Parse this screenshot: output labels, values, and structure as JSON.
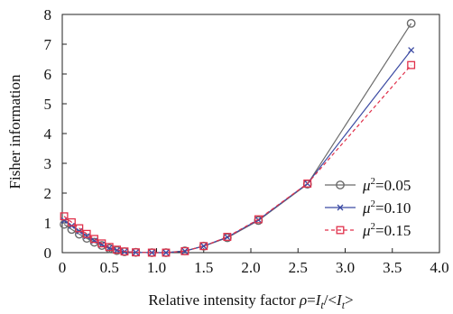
{
  "chart_data": {
    "type": "line",
    "xlabel": "Relative intensity factor ρ=I_t/<I_t>",
    "xlabel_parts": {
      "prefix": "Relative intensity factor ",
      "math_rho": "ρ",
      "math_eq": "=",
      "math_I1": "I",
      "sub1": "t",
      "math_mid": "/<",
      "math_I2": "I",
      "sub2": "t",
      "math_end": ">"
    },
    "ylabel": "Fisher information",
    "xlim": [
      0,
      4.0
    ],
    "ylim": [
      0,
      8
    ],
    "xticks": [
      "0",
      "0.5",
      "1.0",
      "1.5",
      "2.0",
      "2.5",
      "3.0",
      "3.5",
      "4.0"
    ],
    "xtick_values": [
      0,
      0.5,
      1.0,
      1.5,
      2.0,
      2.5,
      3.0,
      3.5,
      4.0
    ],
    "yticks": [
      "0",
      "1",
      "2",
      "3",
      "4",
      "5",
      "6",
      "7",
      "8"
    ],
    "ytick_values": [
      0,
      1,
      2,
      3,
      4,
      5,
      6,
      7,
      8
    ],
    "grid": false,
    "legend_position": "bottom-right",
    "series": [
      {
        "name": "μ²=0.05",
        "label_prefix": "μ",
        "label_sup": "2",
        "label_value": "=0.05",
        "color": "#6b6b6b",
        "marker": "circle",
        "dash": "solid",
        "x": [
          0.02,
          0.1,
          0.18,
          0.26,
          0.34,
          0.42,
          0.5,
          0.58,
          0.66,
          0.78,
          0.95,
          1.1,
          1.3,
          1.5,
          1.75,
          2.08,
          2.6,
          3.7
        ],
        "y": [
          0.95,
          0.78,
          0.62,
          0.48,
          0.35,
          0.24,
          0.14,
          0.07,
          0.03,
          0.01,
          0.0,
          0.0,
          0.06,
          0.22,
          0.5,
          1.08,
          2.3,
          7.7
        ]
      },
      {
        "name": "μ²=0.10",
        "label_prefix": "μ",
        "label_sup": "2",
        "label_value": "=0.10",
        "color": "#3b4aa3",
        "marker": "x",
        "dash": "solid",
        "x": [
          0.02,
          0.1,
          0.18,
          0.26,
          0.34,
          0.42,
          0.5,
          0.58,
          0.66,
          0.78,
          0.95,
          1.1,
          1.3,
          1.5,
          1.75,
          2.08,
          2.6,
          3.7
        ],
        "y": [
          1.08,
          0.9,
          0.72,
          0.55,
          0.4,
          0.27,
          0.16,
          0.08,
          0.03,
          0.01,
          0.0,
          0.0,
          0.05,
          0.22,
          0.52,
          1.1,
          2.32,
          6.8
        ]
      },
      {
        "name": "μ²=0.15",
        "label_prefix": "μ",
        "label_sup": "2",
        "label_value": "=0.15",
        "color": "#e0304a",
        "marker": "square",
        "dash": "dashed",
        "x": [
          0.02,
          0.1,
          0.18,
          0.26,
          0.34,
          0.42,
          0.5,
          0.58,
          0.66,
          0.78,
          0.95,
          1.1,
          1.3,
          1.5,
          1.75,
          2.08,
          2.6,
          3.7
        ],
        "y": [
          1.22,
          1.02,
          0.82,
          0.63,
          0.46,
          0.31,
          0.19,
          0.1,
          0.04,
          0.01,
          0.0,
          0.0,
          0.05,
          0.22,
          0.53,
          1.12,
          2.32,
          6.3
        ]
      }
    ]
  }
}
